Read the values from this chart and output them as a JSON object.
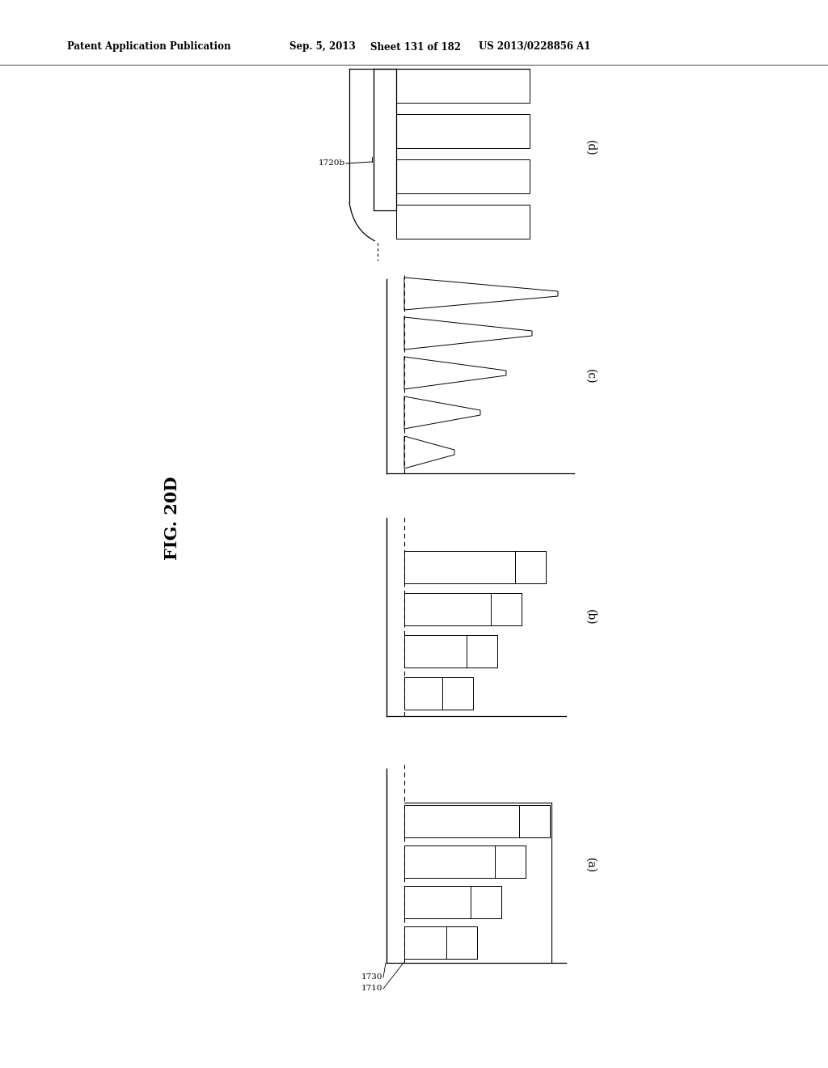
{
  "bg_color": "#ffffff",
  "header_left": "Patent Application Publication",
  "header_mid1": "Sep. 5, 2013",
  "header_mid2": "Sheet 131 of 182",
  "header_right": "US 2013/0228856 A1",
  "fig_label": "FIG. 20D",
  "label_1730": "1730",
  "label_1710": "1710",
  "label_1720b": "1720b",
  "panel_labels": [
    "(a)",
    "(b)",
    "(c)",
    "(d)"
  ],
  "line_color": "#000000",
  "hatch_color": "#000000"
}
